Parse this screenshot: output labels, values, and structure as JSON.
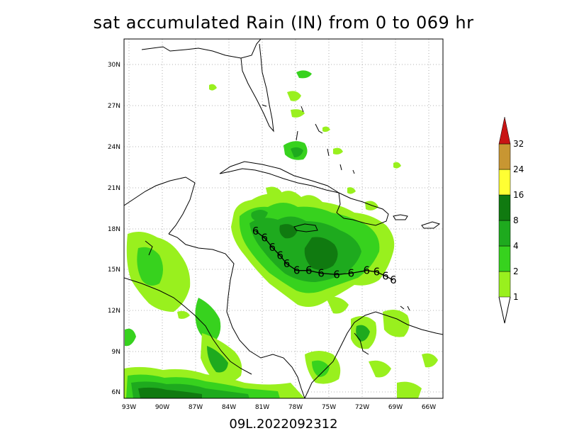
{
  "title": "sat accumulated Rain (IN) from 0 to 069 hr",
  "footer": "09L.2022092312",
  "map": {
    "lon_labels": [
      "93W",
      "90W",
      "87W",
      "84W",
      "81W",
      "78W",
      "75W",
      "72W",
      "69W",
      "66W"
    ],
    "lat_labels": [
      "30N",
      "27N",
      "24N",
      "21N",
      "18N",
      "15N",
      "12N",
      "9N",
      "6N"
    ],
    "storm_symbol": "6",
    "storm_track": [
      {
        "lon": -81.6,
        "lat": 17.8
      },
      {
        "lon": -80.8,
        "lat": 17.3
      },
      {
        "lon": -80.1,
        "lat": 16.6
      },
      {
        "lon": -79.4,
        "lat": 16.0
      },
      {
        "lon": -78.8,
        "lat": 15.4
      },
      {
        "lon": -77.9,
        "lat": 14.9
      },
      {
        "lon": -76.8,
        "lat": 14.9
      },
      {
        "lon": -75.7,
        "lat": 14.7
      },
      {
        "lon": -74.3,
        "lat": 14.6
      },
      {
        "lon": -73.0,
        "lat": 14.7
      },
      {
        "lon": -71.6,
        "lat": 14.9
      },
      {
        "lon": -70.7,
        "lat": 14.8
      },
      {
        "lon": -69.9,
        "lat": 14.5
      },
      {
        "lon": -69.2,
        "lat": 14.2
      }
    ]
  },
  "colorbar": {
    "levels": [
      "1",
      "2",
      "4",
      "8",
      "16",
      "24",
      "32"
    ],
    "colors": [
      "#99f01e",
      "#37d21e",
      "#1eaa1e",
      "#107a10",
      "#ffff33",
      "#c89632",
      "#f0a03c",
      "#c81414"
    ]
  },
  "colors": {
    "light": "#99f01e",
    "medium": "#37d21e",
    "dark": "#1eaa1e",
    "darkest": "#107a10"
  }
}
